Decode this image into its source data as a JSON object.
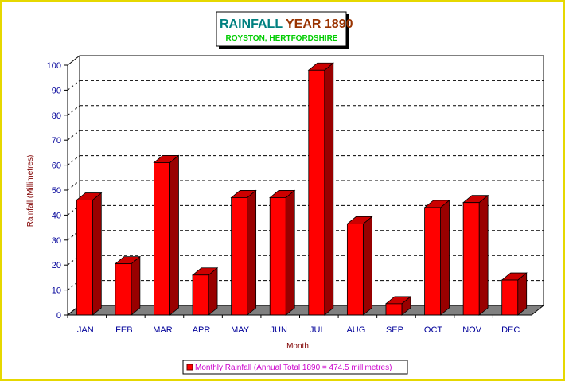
{
  "chart_data": {
    "type": "bar",
    "title_part1": "RAINFALL",
    "title_part2": "YEAR 1890",
    "subtitle": "ROYSTON, HERTFORDSHIRE",
    "xlabel": "Month",
    "ylabel": "Rainfall (Millimetres)",
    "categories": [
      "JAN",
      "FEB",
      "MAR",
      "APR",
      "MAY",
      "JUN",
      "JUL",
      "AUG",
      "SEP",
      "OCT",
      "NOV",
      "DEC"
    ],
    "series": [
      {
        "name": "Monthly Rainfall (Annual Total 1890 = 474.5 millimetres)",
        "values": [
          46,
          20.5,
          61,
          16,
          47,
          47,
          98,
          36.5,
          4.5,
          43,
          45,
          14
        ]
      }
    ],
    "ylim": [
      0,
      100
    ],
    "yticks": [
      "0",
      "10",
      "20",
      "30",
      "40",
      "50",
      "60",
      "70",
      "80",
      "90",
      "100"
    ],
    "grid": true,
    "legend_position": "bottom-center",
    "colors": {
      "bar_front": "#ff0000",
      "bar_side": "#990000",
      "bar_top": "#cc0000",
      "title1": "#008080",
      "title2": "#993300",
      "subtitle": "#00cc00",
      "axis_text": "#000099",
      "ylabel": "#800000",
      "legend_text": "#cc00cc",
      "floor": "#808080",
      "frame": "#ffff66"
    }
  }
}
